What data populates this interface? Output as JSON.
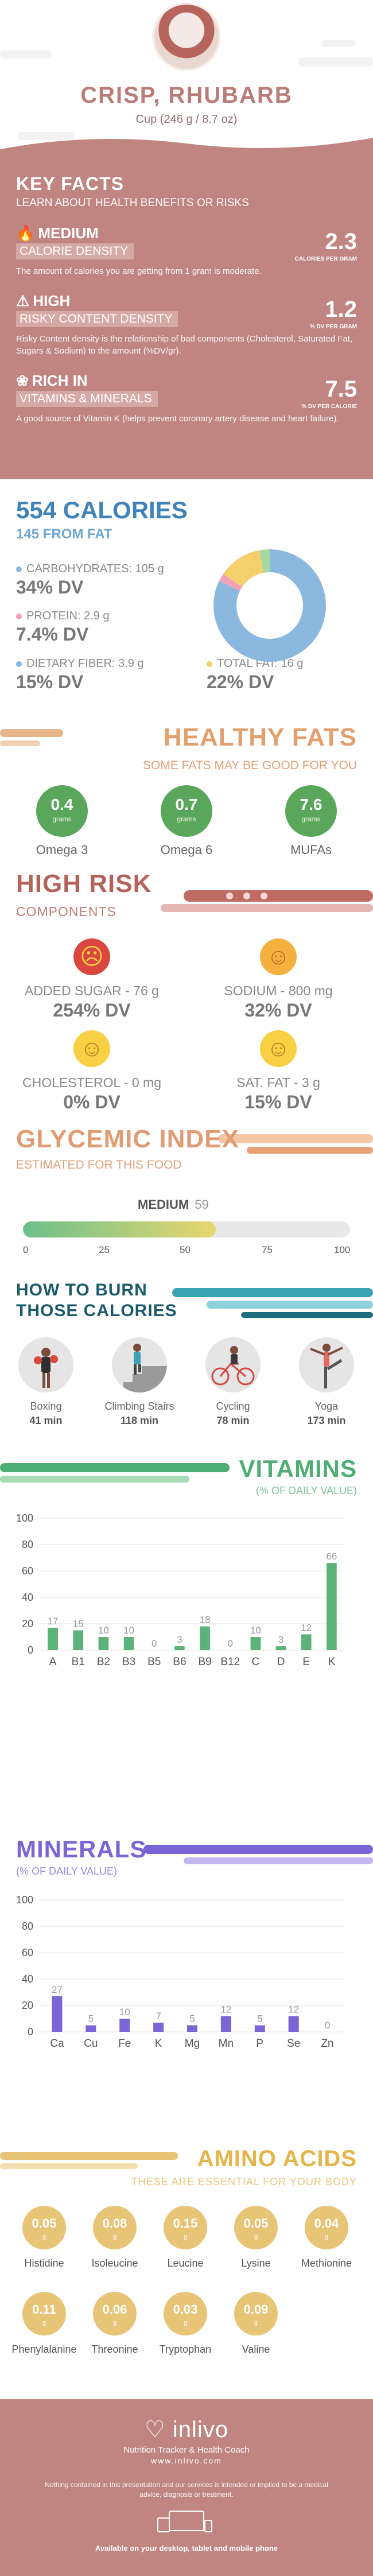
{
  "header": {
    "title": "CRISP, RHUBARB",
    "serving": "Cup (246 g / 8.7 oz)"
  },
  "key_facts": {
    "title": "KEY FACTS",
    "subtitle": "LEARN ABOUT HEALTH BENEFITS OR RISKS",
    "facts": [
      {
        "level": "MEDIUM",
        "name": "CALORIE DENSITY",
        "value": "2.3",
        "unit": "CALORIES PER GRAM",
        "icon": "flame-icon",
        "desc": "The amount of calories you are getting from 1 gram is moderate."
      },
      {
        "level": "HIGH",
        "name": "RISKY CONTENT DENSITY",
        "value": "1.2",
        "unit": "% DV PER GRAM",
        "icon": "warning-icon",
        "desc": "Risky Content density is the relationship of bad components (Cholesterol, Saturated Fat, Sugars & Sodium) to the amount (%DV/gr)."
      },
      {
        "level": "RICH IN",
        "name": "VITAMINS & MINERALS",
        "value": "7.5",
        "unit": "% DV PER CALORIE",
        "icon": "leaf-icon",
        "desc": "A good source of Vitamin K (helps prevent coronary artery disease and heart failure)."
      }
    ]
  },
  "calories": {
    "title": "554 CALORIES",
    "from_fat": "145 FROM FAT",
    "carbs": {
      "label": "CARBOHYDRATES: 105 g",
      "dv": "34% DV",
      "color": "#8ab8de"
    },
    "protein": {
      "label": "PROTEIN: 2.9 g",
      "dv": "7.4% DV",
      "color": "#f0a3b5"
    },
    "fiber": {
      "label": "DIETARY FIBER: 3.9 g",
      "dv": "15% DV",
      "color": "#8ab8de"
    },
    "fat": {
      "label": "TOTAL FAT: 16 g",
      "dv": "22% DV",
      "color": "#f5cf6b"
    },
    "donut": [
      {
        "name": "carbohydrates",
        "value": 105,
        "color": "#8ab8de"
      },
      {
        "name": "protein",
        "value": 2.9,
        "color": "#f0a3b5"
      },
      {
        "name": "fat",
        "value": 16,
        "color": "#f5cf6b"
      },
      {
        "name": "fiber",
        "value": 3.9,
        "color": "#a8d8a0"
      }
    ]
  },
  "healthy_fats": {
    "title": "HEALTHY FATS",
    "subtitle": "SOME FATS MAY BE GOOD FOR YOU",
    "items": [
      {
        "value": "0.4",
        "unit": "grams",
        "label": "Omega 3"
      },
      {
        "value": "0.7",
        "unit": "grams",
        "label": "Omega 6"
      },
      {
        "value": "7.6",
        "unit": "grams",
        "label": "MUFAs"
      }
    ]
  },
  "high_risk": {
    "title": "HIGH RISK",
    "subtitle": "COMPONENTS",
    "items": [
      {
        "name": "ADDED SUGAR - 76 g",
        "pct": "254% DV",
        "face": "sad-face-icon",
        "color": "#d9473f"
      },
      {
        "name": "SODIUM - 800 mg",
        "pct": "32% DV",
        "face": "smile-face-icon",
        "color": "#f4b13e"
      },
      {
        "name": "CHOLESTEROL - 0 mg",
        "pct": "0% DV",
        "face": "grin-face-icon",
        "color": "#f7d043"
      },
      {
        "name": "SAT. FAT - 3 g",
        "pct": "15% DV",
        "face": "happy-face-icon",
        "color": "#f7d043"
      }
    ]
  },
  "glycemic": {
    "title": "GLYCEMIC INDEX",
    "subtitle": "ESTIMATED FOR THIS FOOD",
    "level": "MEDIUM",
    "value": 59,
    "value_label": "59",
    "ticks": [
      "0",
      "25",
      "50",
      "75",
      "100"
    ]
  },
  "burn": {
    "title_line1": "HOW TO BURN",
    "title_line2": "THOSE CALORIES",
    "activities": [
      {
        "name": "Boxing",
        "time": "41 min",
        "icon": "boxing-icon"
      },
      {
        "name": "Climbing Stairs",
        "time": "118 min",
        "icon": "stairs-icon"
      },
      {
        "name": "Cycling",
        "time": "78 min",
        "icon": "bicycle-icon"
      },
      {
        "name": "Yoga",
        "time": "173 min",
        "icon": "yoga-icon"
      }
    ]
  },
  "vitamins": {
    "title": "VITAMINS",
    "subtitle": "(% OF DAILY VALUE)"
  },
  "minerals": {
    "title": "MINERALS",
    "subtitle": "(% OF DAILY VALUE)"
  },
  "chart_data": [
    {
      "type": "bar",
      "title": "VITAMINS",
      "ylabel": "(% OF DAILY VALUE)",
      "categories": [
        "A",
        "B1",
        "B2",
        "B3",
        "B5",
        "B6",
        "B9",
        "B12",
        "C",
        "D",
        "E",
        "K"
      ],
      "values": [
        17,
        15,
        10,
        10,
        0,
        3,
        18,
        0,
        10,
        3,
        12,
        66
      ],
      "ylim": [
        0,
        100
      ],
      "yticks": [
        0,
        20,
        40,
        60,
        80,
        100
      ],
      "color": "#5cb37a"
    },
    {
      "type": "bar",
      "title": "MINERALS",
      "ylabel": "(% OF DAILY VALUE)",
      "categories": [
        "Ca",
        "Cu",
        "Fe",
        "K",
        "Mg",
        "Mn",
        "P",
        "Se",
        "Zn"
      ],
      "values": [
        27,
        5,
        10,
        7,
        5,
        12,
        5,
        12,
        0
      ],
      "ylim": [
        0,
        100
      ],
      "yticks": [
        0,
        20,
        40,
        60,
        80,
        100
      ],
      "color": "#7b64d6"
    }
  ],
  "amino": {
    "title": "AMINO ACIDS",
    "subtitle": "THESE ARE ESSENTIAL FOR YOUR BODY",
    "unit": "g",
    "items": [
      {
        "value": "0.05",
        "label": "Histidine"
      },
      {
        "value": "0.08",
        "label": "Isoleucine"
      },
      {
        "value": "0.15",
        "label": "Leucine"
      },
      {
        "value": "0.05",
        "label": "Lysine"
      },
      {
        "value": "0.04",
        "label": "Methionine"
      },
      {
        "value": "0.11",
        "label": "Phenylalanine"
      },
      {
        "value": "0.06",
        "label": "Threonine"
      },
      {
        "value": "0.03",
        "label": "Tryptophan"
      },
      {
        "value": "0.09",
        "label": "Valine"
      }
    ]
  },
  "footer": {
    "logo": "inlivo",
    "tagline": "Nutrition Tracker & Health Coach",
    "url": "www.inlivo.com",
    "disclaimer": "Nothing contained in this presentation and our services is intended or implied to be a medical advice, diagnosis or treatment.",
    "available": "Available on your desktop, tablet and mobile phone"
  }
}
